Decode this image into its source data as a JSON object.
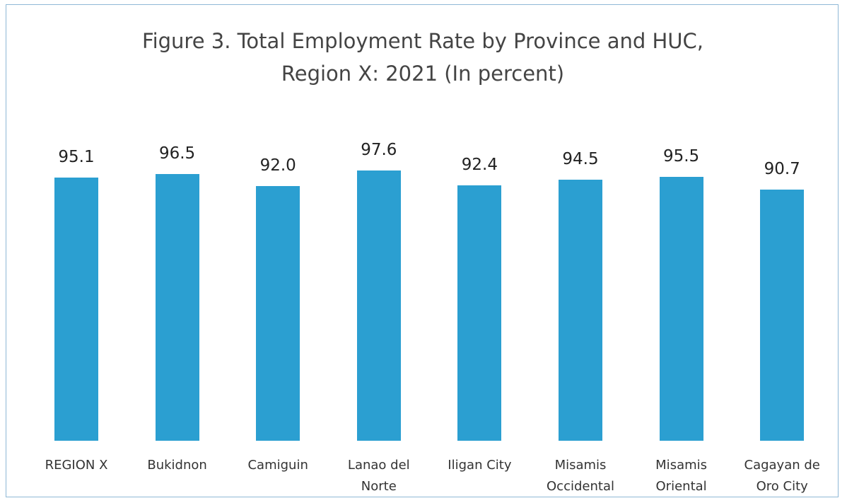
{
  "chart_data": {
    "type": "bar",
    "title": "Figure 3. Total Employment Rate by Province and HUC,\nRegion X: 2021 (In percent)",
    "categories": [
      "REGION X",
      "Bukidnon",
      "Camiguin",
      "Lanao del Norte",
      "Iligan City",
      "Misamis Occidental",
      "Misamis Oriental",
      "Cagayan de Oro City"
    ],
    "values": [
      95.1,
      96.5,
      92.0,
      97.6,
      92.4,
      94.5,
      95.5,
      90.7
    ],
    "value_labels": [
      "95.1",
      "96.5",
      "92.0",
      "97.6",
      "92.4",
      "94.5",
      "95.5",
      "90.7"
    ],
    "color": "#2b9fd1"
  }
}
